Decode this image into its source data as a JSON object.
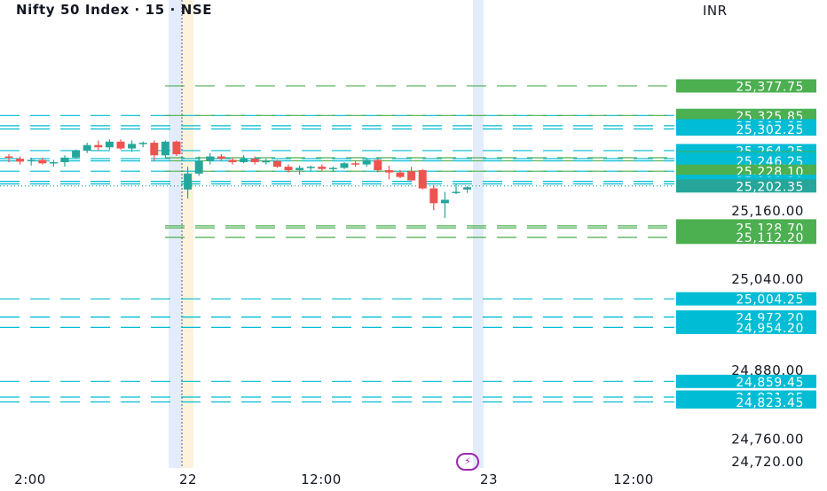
{
  "header": {
    "title": "Nifty 50 Index · 15 · NSE",
    "currency": "INR"
  },
  "colors": {
    "up": "#26a69a",
    "down": "#ef5350",
    "green_level": "#4caf50",
    "cyan_level": "#00bcd4",
    "session_marker": "#3f51b5",
    "highlight_blue": "#e3ecfb",
    "highlight_yellow": "#fdf3dc"
  },
  "chart_data": {
    "type": "candlestick",
    "y_range": [
      24705,
      25390
    ],
    "y_ticks": [
      "25,160.00",
      "25,040.00",
      "24,880.00",
      "24,760.00",
      "24,720.00"
    ],
    "x_ticks": [
      "2:00",
      "22",
      "12:00",
      "23",
      "12:00"
    ],
    "current_price": "25,202.35",
    "level_labels": [
      {
        "text": "25,377.75",
        "value": 25377.75,
        "kind": "green"
      },
      {
        "text": "25,325.85",
        "value": 25325.85,
        "kind": "cyan"
      },
      {
        "text": "25,325.85",
        "value": 25325.85,
        "kind": "green"
      },
      {
        "text": "25,307.85",
        "value": 25307.85,
        "kind": "cyan"
      },
      {
        "text": "25,302.25",
        "value": 25302.25,
        "kind": "cyan"
      },
      {
        "text": "25,264.25",
        "value": 25264.25,
        "kind": "cyan"
      },
      {
        "text": "25,251.70",
        "value": 25251.7,
        "kind": "green"
      },
      {
        "text": "25,250.25",
        "value": 25250.25,
        "kind": "cyan"
      },
      {
        "text": "25,246.40",
        "value": 25246.4,
        "kind": "green"
      },
      {
        "text": "25,246.25",
        "value": 25246.25,
        "kind": "cyan"
      },
      {
        "text": "25,228.10",
        "value": 25228.1,
        "kind": "cyan"
      },
      {
        "text": "25,228.10",
        "value": 25228.1,
        "kind": "green"
      },
      {
        "text": "25,210.30",
        "value": 25210.3,
        "kind": "cyan"
      },
      {
        "text": "25,205.85",
        "value": 25205.85,
        "kind": "cyan"
      },
      {
        "text": "25,202.35",
        "value": 25202.35,
        "kind": "price"
      },
      {
        "text": "25,132.20",
        "value": 25132.2,
        "kind": "green"
      },
      {
        "text": "25,128.70",
        "value": 25128.7,
        "kind": "green"
      },
      {
        "text": "25,112.20",
        "value": 25112.2,
        "kind": "green"
      },
      {
        "text": "25,004.25",
        "value": 25004.25,
        "kind": "cyan"
      },
      {
        "text": "24,972.20",
        "value": 24972.2,
        "kind": "cyan"
      },
      {
        "text": "24,972.20",
        "value": 24972.2,
        "kind": "cyan"
      },
      {
        "text": "24,954.20",
        "value": 24954.2,
        "kind": "cyan"
      },
      {
        "text": "24,859.45",
        "value": 24859.45,
        "kind": "cyan"
      },
      {
        "text": "24,831.95",
        "value": 24831.95,
        "kind": "cyan"
      },
      {
        "text": "24,823.45",
        "value": 24823.45,
        "kind": "cyan"
      }
    ],
    "candles": [
      {
        "o": 25254,
        "h": 25258,
        "l": 25244,
        "c": 25252
      },
      {
        "o": 25250,
        "h": 25254,
        "l": 25240,
        "c": 25245
      },
      {
        "o": 25246,
        "h": 25252,
        "l": 25238,
        "c": 25248
      },
      {
        "o": 25248,
        "h": 25252,
        "l": 25240,
        "c": 25242
      },
      {
        "o": 25242,
        "h": 25248,
        "l": 25236,
        "c": 25244
      },
      {
        "o": 25244,
        "h": 25256,
        "l": 25236,
        "c": 25252
      },
      {
        "o": 25252,
        "h": 25266,
        "l": 25250,
        "c": 25264
      },
      {
        "o": 25264,
        "h": 25278,
        "l": 25260,
        "c": 25274
      },
      {
        "o": 25274,
        "h": 25282,
        "l": 25264,
        "c": 25270
      },
      {
        "o": 25270,
        "h": 25284,
        "l": 25266,
        "c": 25280
      },
      {
        "o": 25280,
        "h": 25284,
        "l": 25266,
        "c": 25268
      },
      {
        "o": 25268,
        "h": 25282,
        "l": 25262,
        "c": 25276
      },
      {
        "o": 25276,
        "h": 25280,
        "l": 25270,
        "c": 25278
      },
      {
        "o": 25278,
        "h": 25282,
        "l": 25246,
        "c": 25256
      },
      {
        "o": 25256,
        "h": 25282,
        "l": 25252,
        "c": 25280
      },
      {
        "o": 25280,
        "h": 25282,
        "l": 25255,
        "c": 25258
      },
      {
        "o": 25196,
        "h": 25236,
        "l": 25180,
        "c": 25224
      },
      {
        "o": 25224,
        "h": 25254,
        "l": 25220,
        "c": 25246
      },
      {
        "o": 25246,
        "h": 25260,
        "l": 25240,
        "c": 25254
      },
      {
        "o": 25254,
        "h": 25258,
        "l": 25246,
        "c": 25250
      },
      {
        "o": 25248,
        "h": 25252,
        "l": 25240,
        "c": 25244
      },
      {
        "o": 25244,
        "h": 25256,
        "l": 25242,
        "c": 25250
      },
      {
        "o": 25250,
        "h": 25254,
        "l": 25240,
        "c": 25244
      },
      {
        "o": 25244,
        "h": 25250,
        "l": 25240,
        "c": 25246
      },
      {
        "o": 25246,
        "h": 25248,
        "l": 25234,
        "c": 25236
      },
      {
        "o": 25236,
        "h": 25240,
        "l": 25226,
        "c": 25230
      },
      {
        "o": 25230,
        "h": 25238,
        "l": 25222,
        "c": 25234
      },
      {
        "o": 25234,
        "h": 25238,
        "l": 25228,
        "c": 25236
      },
      {
        "o": 25236,
        "h": 25240,
        "l": 25228,
        "c": 25232
      },
      {
        "o": 25232,
        "h": 25236,
        "l": 25228,
        "c": 25234
      },
      {
        "o": 25234,
        "h": 25244,
        "l": 25232,
        "c": 25242
      },
      {
        "o": 25242,
        "h": 25246,
        "l": 25236,
        "c": 25240
      },
      {
        "o": 25240,
        "h": 25252,
        "l": 25236,
        "c": 25248
      },
      {
        "o": 25248,
        "h": 25250,
        "l": 25226,
        "c": 25230
      },
      {
        "o": 25230,
        "h": 25238,
        "l": 25214,
        "c": 25226
      },
      {
        "o": 25226,
        "h": 25230,
        "l": 25216,
        "c": 25218
      },
      {
        "o": 25228,
        "h": 25236,
        "l": 25212,
        "c": 25212
      },
      {
        "o": 25230,
        "h": 25232,
        "l": 25196,
        "c": 25198
      },
      {
        "o": 25198,
        "h": 25204,
        "l": 25160,
        "c": 25172
      },
      {
        "o": 25172,
        "h": 25192,
        "l": 25146,
        "c": 25178
      },
      {
        "o": 25192,
        "h": 25206,
        "l": 25188,
        "c": 25192
      },
      {
        "o": 25196,
        "h": 25202,
        "l": 25190,
        "c": 25200
      }
    ]
  }
}
